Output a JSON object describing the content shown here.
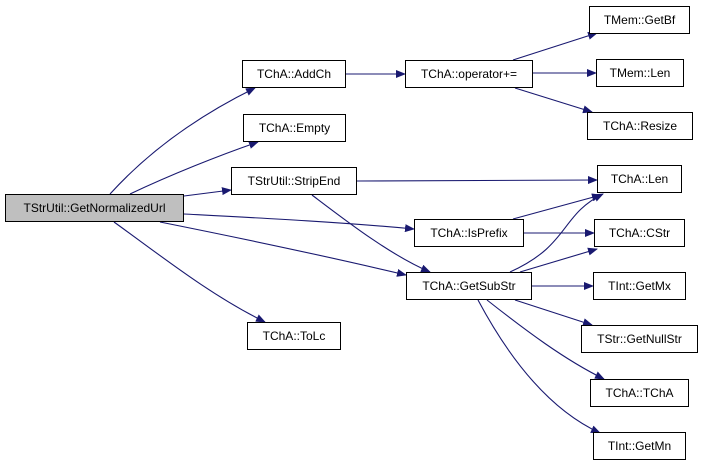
{
  "nodes": {
    "root": "TStrUtil::GetNormalizedUrl",
    "addch": "TChA::AddCh",
    "empty": "TChA::Empty",
    "stripend": "TStrUtil::StripEnd",
    "tolc": "TChA::ToLc",
    "opplus": "TChA::operator+=",
    "isprefix": "TChA::IsPrefix",
    "getsubstr": "TChA::GetSubStr",
    "getbf": "TMem::GetBf",
    "memlen": "TMem::Len",
    "resize": "TChA::Resize",
    "chalen": "TChA::Len",
    "cstr": "TChA::CStr",
    "getmx": "TInt::GetMx",
    "getnullstr": "TStr::GetNullStr",
    "tcha": "TChA::TChA",
    "getmn": "TInt::GetMn"
  },
  "edges": [
    [
      "root",
      "addch"
    ],
    [
      "root",
      "empty"
    ],
    [
      "root",
      "stripend"
    ],
    [
      "root",
      "isprefix"
    ],
    [
      "root",
      "getsubstr"
    ],
    [
      "root",
      "tolc"
    ],
    [
      "addch",
      "opplus"
    ],
    [
      "opplus",
      "getbf"
    ],
    [
      "opplus",
      "memlen"
    ],
    [
      "opplus",
      "resize"
    ],
    [
      "stripend",
      "chalen"
    ],
    [
      "stripend",
      "getsubstr"
    ],
    [
      "isprefix",
      "chalen"
    ],
    [
      "isprefix",
      "cstr"
    ],
    [
      "getsubstr",
      "chalen"
    ],
    [
      "getsubstr",
      "cstr"
    ],
    [
      "getsubstr",
      "getmx"
    ],
    [
      "getsubstr",
      "getnullstr"
    ],
    [
      "getsubstr",
      "tcha"
    ],
    [
      "getsubstr",
      "getmn"
    ]
  ],
  "colors": {
    "edge": "#191970",
    "root_fill": "#bfbfbf",
    "node_fill": "#ffffff"
  }
}
